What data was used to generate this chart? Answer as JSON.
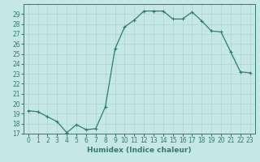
{
  "x": [
    0,
    1,
    2,
    3,
    4,
    5,
    6,
    7,
    8,
    9,
    10,
    11,
    12,
    13,
    14,
    15,
    16,
    17,
    18,
    19,
    20,
    21,
    22,
    23
  ],
  "y": [
    19.3,
    19.2,
    18.7,
    18.2,
    17.1,
    17.9,
    17.4,
    17.5,
    19.7,
    25.5,
    27.7,
    28.4,
    29.3,
    29.3,
    29.3,
    28.5,
    28.5,
    29.2,
    28.3,
    27.3,
    27.2,
    25.2,
    23.2,
    23.1
  ],
  "line_color": "#2e7d6e",
  "marker_color": "#2e7d6e",
  "bg_color": "#c5e8e5",
  "grid_color": "#b0d5d0",
  "xlabel": "Humidex (Indice chaleur)",
  "ylim": [
    17,
    30
  ],
  "xlim": [
    -0.5,
    23.5
  ],
  "yticks": [
    17,
    18,
    19,
    20,
    21,
    22,
    23,
    24,
    25,
    26,
    27,
    28,
    29
  ],
  "xticks": [
    0,
    1,
    2,
    3,
    4,
    5,
    6,
    7,
    8,
    9,
    10,
    11,
    12,
    13,
    14,
    15,
    16,
    17,
    18,
    19,
    20,
    21,
    22,
    23
  ],
  "xtick_labels": [
    "0",
    "1",
    "2",
    "3",
    "4",
    "5",
    "6",
    "7",
    "8",
    "9",
    "10",
    "11",
    "12",
    "13",
    "14",
    "15",
    "16",
    "17",
    "18",
    "19",
    "20",
    "21",
    "22",
    "23"
  ],
  "tick_color": "#2e7d6e",
  "spine_color": "#2e7d6e",
  "xlabel_color": "#2e7d6e",
  "tick_fontsize": 5.5,
  "xlabel_fontsize": 6.5
}
